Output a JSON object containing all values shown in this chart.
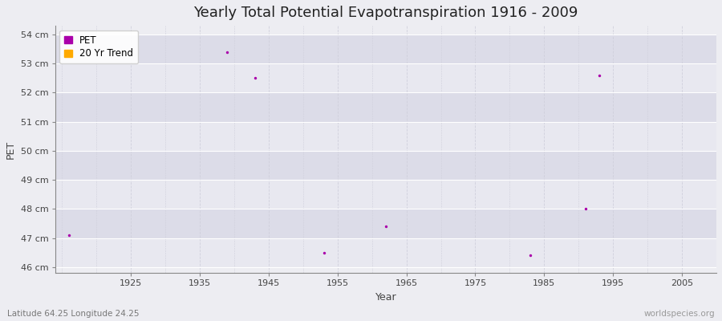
{
  "title": "Yearly Total Potential Evapotranspiration 1916 - 2009",
  "xlabel": "Year",
  "ylabel": "PET",
  "xlim": [
    1914,
    2010
  ],
  "ylim": [
    45.8,
    54.3
  ],
  "yticks": [
    46,
    47,
    48,
    49,
    50,
    51,
    52,
    53,
    54
  ],
  "ytick_labels": [
    "46 cm",
    "47 cm",
    "48 cm",
    "49 cm",
    "50 cm",
    "51 cm",
    "52 cm",
    "53 cm",
    "54 cm"
  ],
  "xticks": [
    1925,
    1935,
    1945,
    1955,
    1965,
    1975,
    1985,
    1995,
    2005
  ],
  "pet_years": [
    1916,
    1939,
    1943,
    1953,
    1962,
    1983,
    1991,
    1993
  ],
  "pet_values": [
    47.1,
    53.4,
    52.5,
    46.5,
    47.4,
    46.4,
    48.0,
    52.6
  ],
  "pet_color": "#aa00aa",
  "trend_color": "#ffaa00",
  "bg_light": "#ededf2",
  "bg_dark": "#e0e0ea",
  "grid_v_color": "#d0d0dc",
  "grid_h_color": "#ffffff",
  "dot_size": 6,
  "footer_left": "Latitude 64.25 Longitude 24.25",
  "footer_right": "worldspecies.org",
  "title_fontsize": 13,
  "axis_label_fontsize": 9,
  "tick_fontsize": 8,
  "footer_fontsize": 7.5,
  "band_colors": [
    "#e8e8f0",
    "#dcdce8"
  ],
  "spine_color": "#888888"
}
